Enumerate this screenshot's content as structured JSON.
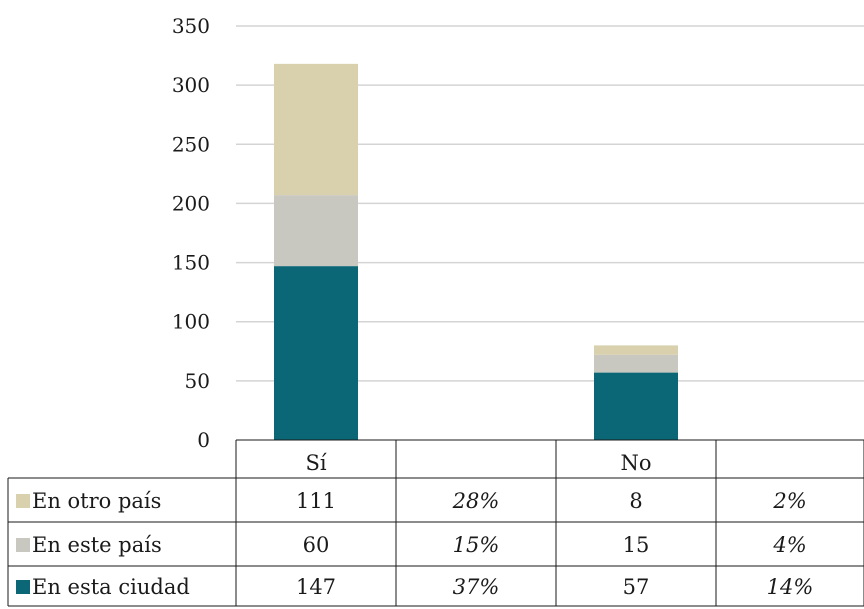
{
  "chart_data": {
    "type": "bar",
    "stacked": true,
    "categories": [
      "Sí",
      "No"
    ],
    "series": [
      {
        "name": "En esta ciudad",
        "values": [
          147,
          57
        ],
        "color": "#0b6776"
      },
      {
        "name": "En este país",
        "values": [
          60,
          15
        ],
        "color": "#c8c8c0"
      },
      {
        "name": "En otro país",
        "values": [
          111,
          8
        ],
        "color": "#d9d0ae"
      }
    ],
    "ylim": [
      0,
      350
    ],
    "yticks": [
      "0",
      "50",
      "100",
      "150",
      "200",
      "250",
      "300",
      "350"
    ],
    "grid": true,
    "data_table": {
      "columns": [
        "Sí",
        "",
        "No",
        ""
      ],
      "rows": [
        {
          "label": "En otro país",
          "cells": [
            "111",
            "28%",
            "8",
            "2%"
          ]
        },
        {
          "label": "En este país",
          "cells": [
            "60",
            "15%",
            "15",
            "4%"
          ]
        },
        {
          "label": "En esta ciudad",
          "cells": [
            "147",
            "37%",
            "57",
            "14%"
          ]
        }
      ]
    }
  }
}
